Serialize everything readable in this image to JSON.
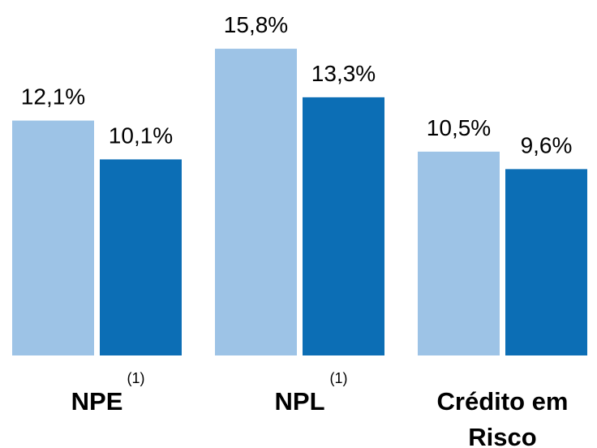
{
  "chart_data": {
    "type": "bar",
    "categories": [
      "NPE",
      "NPL",
      "Crédito em Risco"
    ],
    "category_notes": [
      "(1)",
      "(1)",
      null
    ],
    "series": [
      {
        "color": "#9dc3e6",
        "values": [
          12.1,
          15.8,
          10.5
        ],
        "value_labels": [
          "12,1%",
          "15,8%",
          "10,5%"
        ]
      },
      {
        "color": "#0c6eb5",
        "values": [
          10.1,
          13.3,
          9.6
        ],
        "value_labels": [
          "10,1%",
          "13,3%",
          "9,6%"
        ]
      }
    ]
  }
}
